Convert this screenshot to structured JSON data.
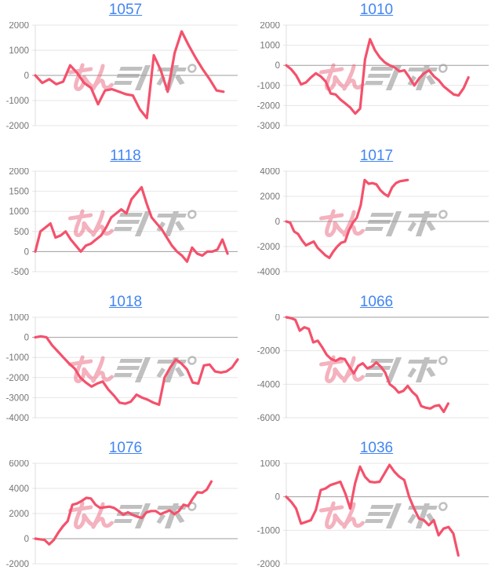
{
  "page": {
    "background": "#ffffff"
  },
  "style": {
    "line_color": "#f4516c",
    "title_link_color": "#4285f4",
    "tick_label_color": "#757575",
    "grid_line_color": "#e6e6e6",
    "zero_line_color": "#9e9e9e",
    "axis_line_color": "#dcdcdc",
    "watermark_pink": "#e9647e",
    "watermark_gray": "#999999"
  },
  "watermark": {
    "icon": "minrepo-logo-watermark",
    "pink_text": "みん",
    "gray_text": "レポ"
  },
  "chart_data": [
    {
      "type": "line",
      "title": "1057",
      "xlabel": "",
      "ylabel": "",
      "ylim": [
        -2000,
        2000
      ],
      "yticks": [
        2000,
        1000,
        0,
        -1000,
        -2000
      ],
      "grid": true,
      "legend": "none",
      "span": 0.93,
      "values": [
        0,
        -300,
        -150,
        -350,
        -250,
        400,
        100,
        -300,
        -500,
        -1150,
        -600,
        -550,
        -650,
        -750,
        -800,
        -1350,
        -1700,
        800,
        200,
        -650,
        900,
        1750,
        1200,
        700,
        250,
        -150,
        -600,
        -650
      ]
    },
    {
      "type": "line",
      "title": "1010",
      "xlabel": "",
      "ylabel": "",
      "ylim": [
        -3000,
        2000
      ],
      "yticks": [
        2000,
        1000,
        0,
        -1000,
        -2000,
        -3000
      ],
      "grid": true,
      "legend": "none",
      "span": 0.9,
      "values": [
        0,
        -200,
        -500,
        -950,
        -850,
        -600,
        -400,
        -550,
        -800,
        -1400,
        -1450,
        -1700,
        -1900,
        -2100,
        -2400,
        -2150,
        300,
        1300,
        750,
        400,
        150,
        0,
        -100,
        -300,
        -250,
        -600,
        -1000,
        -650,
        -400,
        -250,
        -550,
        -750,
        -1050,
        -1250,
        -1450,
        -1500,
        -1150,
        -600
      ]
    },
    {
      "type": "line",
      "title": "1118",
      "xlabel": "",
      "ylabel": "",
      "ylim": [
        -500,
        2000
      ],
      "yticks": [
        2000,
        1500,
        1000,
        500,
        0,
        -500
      ],
      "grid": true,
      "legend": "none",
      "span": 0.95,
      "values": [
        0,
        500,
        600,
        700,
        350,
        400,
        500,
        300,
        150,
        0,
        150,
        200,
        300,
        400,
        600,
        850,
        950,
        1050,
        950,
        1300,
        1450,
        1600,
        1200,
        850,
        700,
        550,
        350,
        150,
        0,
        -100,
        -250,
        100,
        -50,
        -100,
        0,
        0,
        50,
        300,
        -50
      ]
    },
    {
      "type": "line",
      "title": "1017",
      "xlabel": "",
      "ylabel": "",
      "ylim": [
        -4000,
        4000
      ],
      "yticks": [
        4000,
        2000,
        0,
        -2000,
        -4000
      ],
      "grid": true,
      "legend": "none",
      "span": 0.6,
      "values": [
        0,
        -100,
        -800,
        -1000,
        -1500,
        -1900,
        -1750,
        -1600,
        -2100,
        -2400,
        -2700,
        -2900,
        -2400,
        -2000,
        -1700,
        -1600,
        -700,
        -100,
        300,
        1300,
        3300,
        3000,
        3050,
        2950,
        2500,
        2200,
        2000,
        2700,
        3050,
        3200,
        3250,
        3300
      ]
    },
    {
      "type": "line",
      "title": "1018",
      "xlabel": "",
      "ylabel": "",
      "ylim": [
        -4000,
        1000
      ],
      "yticks": [
        1000,
        0,
        -1000,
        -2000,
        -3000,
        -4000
      ],
      "grid": true,
      "legend": "none",
      "span": 1.0,
      "values": [
        0,
        50,
        0,
        -400,
        -700,
        -1000,
        -1300,
        -1550,
        -2000,
        -2250,
        -2450,
        -2300,
        -2200,
        -2600,
        -2900,
        -3250,
        -3300,
        -3200,
        -2850,
        -3000,
        -3100,
        -3250,
        -3350,
        -2000,
        -1500,
        -1100,
        -1300,
        -1600,
        -2250,
        -2300,
        -1400,
        -1350,
        -1700,
        -1750,
        -1700,
        -1500,
        -1100
      ]
    },
    {
      "type": "line",
      "title": "1066",
      "xlabel": "",
      "ylabel": "",
      "ylim": [
        -6000,
        0
      ],
      "yticks": [
        0,
        -2000,
        -4000,
        -6000
      ],
      "grid": true,
      "legend": "none",
      "span": 0.8,
      "values": [
        0,
        -50,
        -150,
        -800,
        -600,
        -700,
        -1500,
        -1400,
        -1800,
        -2250,
        -2500,
        -2600,
        -2450,
        -2500,
        -2950,
        -3350,
        -2900,
        -2750,
        -3050,
        -2950,
        -2700,
        -2950,
        -3300,
        -4000,
        -4200,
        -4500,
        -4400,
        -4100,
        -4450,
        -4700,
        -5300,
        -5400,
        -5450,
        -5300,
        -5250,
        -5650,
        -5150
      ]
    },
    {
      "type": "line",
      "title": "1076",
      "xlabel": "",
      "ylabel": "",
      "ylim": [
        -2000,
        6000
      ],
      "yticks": [
        6000,
        4000,
        2000,
        0,
        -2000
      ],
      "grid": true,
      "legend": "none",
      "span": 0.87,
      "values": [
        0,
        -50,
        -100,
        -450,
        -100,
        500,
        1000,
        1400,
        2700,
        2800,
        3000,
        3250,
        3200,
        2700,
        2450,
        2500,
        2550,
        2450,
        2200,
        1900,
        2100,
        1900,
        1750,
        1650,
        2100,
        2200,
        2200,
        1950,
        2100,
        2250,
        1950,
        2200,
        2700,
        2600,
        3200,
        3700,
        3650,
        3900,
        4550
      ]
    },
    {
      "type": "line",
      "title": "1036",
      "xlabel": "",
      "ylabel": "",
      "ylim": [
        -2000,
        1000
      ],
      "yticks": [
        1000,
        0,
        -1000,
        -2000
      ],
      "grid": true,
      "legend": "none",
      "span": 0.85,
      "values": [
        0,
        -150,
        -350,
        -800,
        -750,
        -700,
        -400,
        200,
        250,
        350,
        400,
        450,
        100,
        -350,
        400,
        900,
        600,
        450,
        430,
        450,
        700,
        950,
        750,
        600,
        500,
        0,
        -350,
        -650,
        -700,
        -850,
        -700,
        -1150,
        -950,
        -900,
        -1100,
        -1750
      ]
    }
  ]
}
